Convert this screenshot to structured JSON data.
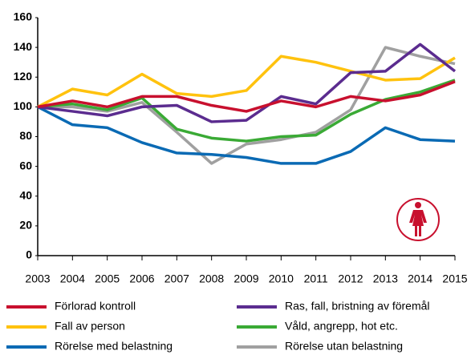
{
  "chart_data": {
    "type": "line",
    "categories": [
      "2003",
      "2004",
      "2005",
      "2006",
      "2007",
      "2008",
      "2009",
      "2010",
      "2011",
      "2012",
      "2013",
      "2014",
      "2015"
    ],
    "ylim": [
      0,
      160
    ],
    "yticks": [
      0,
      20,
      40,
      60,
      80,
      100,
      120,
      140,
      160
    ],
    "grid": false,
    "series": [
      {
        "name": "Förlorad kontroll",
        "color": "#c8102e",
        "values": [
          100,
          104,
          100,
          107,
          107,
          101,
          97,
          104,
          100,
          107,
          104,
          108,
          117
        ]
      },
      {
        "name": "Ras, fall, bristning av föremål",
        "color": "#5b2c8f",
        "values": [
          100,
          97,
          94,
          100,
          101,
          90,
          91,
          107,
          102,
          123,
          124,
          142,
          124
        ]
      },
      {
        "name": "Fall av person",
        "color": "#ffc20e",
        "values": [
          100,
          112,
          108,
          122,
          109,
          107,
          111,
          134,
          130,
          124,
          118,
          119,
          133
        ]
      },
      {
        "name": "Våld, angrepp, hot etc.",
        "color": "#3aaa35",
        "values": [
          100,
          102,
          98,
          106,
          85,
          79,
          77,
          80,
          81,
          95,
          105,
          110,
          118
        ]
      },
      {
        "name": "Rörelse med belastning",
        "color": "#0a6ab4",
        "values": [
          100,
          88,
          86,
          76,
          69,
          68,
          66,
          62,
          62,
          70,
          86,
          78,
          77
        ]
      },
      {
        "name": "Rörelse utan belastning",
        "color": "#a0a0a0",
        "values": [
          100,
          100,
          97,
          103,
          83,
          62,
          75,
          78,
          83,
          98,
          140,
          134,
          129
        ]
      }
    ]
  }
}
